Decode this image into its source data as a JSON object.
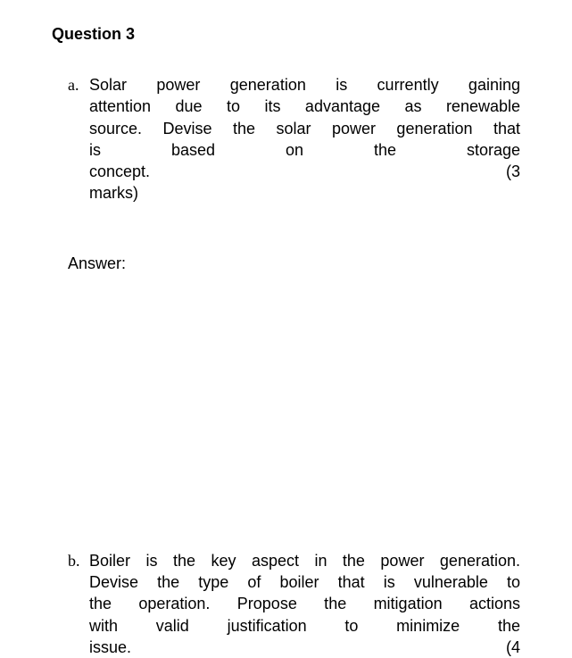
{
  "question": {
    "title": "Question 3",
    "parts": {
      "a": {
        "marker": "a.",
        "line1": "Solar power generation is currently gaining",
        "line2": "attention due to its advantage as renewable",
        "line3": "source. Devise the solar power generation that",
        "line4": "is based on the storage",
        "line5_left": "concept.",
        "line5_right": "(3",
        "line6": "marks)"
      },
      "b": {
        "marker": "b.",
        "line1": "Boiler is the key aspect in the power generation.",
        "line2": "Devise the type of boiler that is vulnerable to",
        "line3": "the operation. Propose the mitigation actions",
        "line4": "with valid justification to minimize the",
        "line5_left": "issue.",
        "line5_right": "(4"
      }
    },
    "answerLabel": "Answer:"
  }
}
